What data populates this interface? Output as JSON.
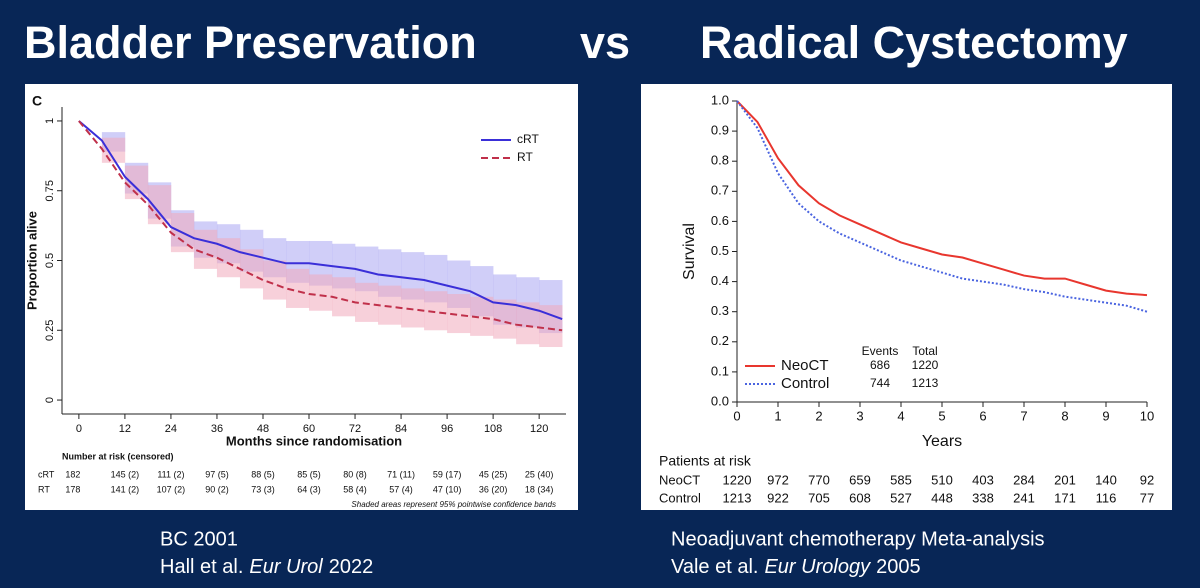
{
  "slide": {
    "title_left": "Bladder Preservation",
    "title_vs": "vs",
    "title_right": "Radical Cystectomy",
    "captions": [
      {
        "line1": "BC 2001",
        "authors": "Hall et al.",
        "journal": "Eur Urol",
        "year": "2022"
      },
      {
        "line1": "Neoadjuvant chemotherapy Meta-analysis",
        "authors": "Vale et al.",
        "journal": "Eur Urology",
        "year": "2005"
      }
    ]
  },
  "chart_data": [
    {
      "type": "line",
      "panel_label": "C",
      "y_label": "Proportion alive",
      "x_label": "Months since randomisation",
      "x": [
        0,
        6,
        12,
        18,
        24,
        30,
        36,
        42,
        48,
        54,
        60,
        66,
        72,
        78,
        84,
        90,
        96,
        102,
        108,
        114,
        120,
        126
      ],
      "xlim": [
        -4.4,
        127
      ],
      "ylim": [
        -0.05,
        1.05
      ],
      "xticks": [
        0,
        12,
        24,
        36,
        48,
        60,
        72,
        84,
        96,
        108,
        120
      ],
      "yticks": [
        0,
        0.25,
        0.5,
        0.75,
        1
      ],
      "legend": "upper right",
      "series": [
        {
          "name": "cRT",
          "color": "#3a2fd8",
          "line_style": "solid",
          "band_color": "#aaa6f2",
          "values": [
            1.0,
            0.93,
            0.8,
            0.72,
            0.62,
            0.58,
            0.56,
            0.53,
            0.51,
            0.49,
            0.49,
            0.48,
            0.47,
            0.45,
            0.44,
            0.43,
            0.41,
            0.39,
            0.35,
            0.34,
            0.32,
            0.29
          ],
          "lower": [
            1.0,
            0.89,
            0.74,
            0.65,
            0.55,
            0.51,
            0.49,
            0.46,
            0.44,
            0.42,
            0.41,
            0.4,
            0.39,
            0.37,
            0.36,
            0.35,
            0.33,
            0.3,
            0.27,
            0.26,
            0.24,
            0.2
          ],
          "upper": [
            1.0,
            0.96,
            0.85,
            0.78,
            0.68,
            0.64,
            0.63,
            0.61,
            0.58,
            0.57,
            0.57,
            0.56,
            0.55,
            0.54,
            0.53,
            0.52,
            0.5,
            0.48,
            0.45,
            0.44,
            0.43,
            0.4
          ]
        },
        {
          "name": "RT",
          "color": "#c0304a",
          "line_style": "dashed",
          "band_color": "#f0aabb",
          "values": [
            1.0,
            0.9,
            0.78,
            0.7,
            0.6,
            0.54,
            0.51,
            0.47,
            0.43,
            0.4,
            0.38,
            0.37,
            0.35,
            0.34,
            0.33,
            0.32,
            0.31,
            0.3,
            0.29,
            0.27,
            0.26,
            0.25
          ],
          "lower": [
            1.0,
            0.85,
            0.72,
            0.63,
            0.53,
            0.47,
            0.44,
            0.4,
            0.36,
            0.33,
            0.32,
            0.3,
            0.28,
            0.27,
            0.26,
            0.25,
            0.24,
            0.23,
            0.22,
            0.2,
            0.19,
            0.17
          ],
          "upper": [
            1.0,
            0.94,
            0.84,
            0.77,
            0.67,
            0.61,
            0.58,
            0.54,
            0.5,
            0.47,
            0.45,
            0.44,
            0.42,
            0.41,
            0.4,
            0.39,
            0.38,
            0.37,
            0.36,
            0.35,
            0.34,
            0.33
          ]
        }
      ],
      "risk_table": {
        "title": "Number at risk (censored)",
        "rows": [
          {
            "name": "cRT",
            "values": [
              "182",
              "145 (2)",
              "111 (2)",
              "97 (5)",
              "88 (5)",
              "85 (5)",
              "80 (8)",
              "71 (11)",
              "59 (17)",
              "45 (25)",
              "25 (40)"
            ]
          },
          {
            "name": "RT",
            "values": [
              "178",
              "141 (2)",
              "107 (2)",
              "90 (2)",
              "73 (3)",
              "64 (3)",
              "58 (4)",
              "57 (4)",
              "47 (10)",
              "36 (20)",
              "18 (34)"
            ]
          }
        ]
      },
      "note": "Shaded areas represent 95% pointwise confidence bands"
    },
    {
      "type": "line",
      "y_label": "Survival",
      "x_label": "Years",
      "x": [
        0,
        0.5,
        1,
        1.5,
        2,
        2.5,
        3,
        3.5,
        4,
        4.5,
        5,
        5.5,
        6,
        6.5,
        7,
        7.5,
        8,
        8.5,
        9,
        9.5,
        10
      ],
      "xlim": [
        0,
        10
      ],
      "ylim": [
        0,
        1
      ],
      "xticks": [
        0,
        1,
        2,
        3,
        4,
        5,
        6,
        7,
        8,
        9,
        10
      ],
      "yticks": [
        {
          "value": 0,
          "label": "0.0"
        },
        0.1,
        0.2,
        0.3,
        0.4,
        0.5,
        0.6,
        0.7,
        0.8,
        0.9,
        {
          "value": 1,
          "label": "1.0"
        }
      ],
      "legend": "lower left",
      "series": [
        {
          "name": "NeoCT",
          "color": "#e8362e",
          "line_style": "solid",
          "values": [
            1.0,
            0.93,
            0.81,
            0.72,
            0.66,
            0.62,
            0.59,
            0.56,
            0.53,
            0.51,
            0.49,
            0.48,
            0.46,
            0.44,
            0.42,
            0.41,
            0.41,
            0.39,
            0.37,
            0.36,
            0.355
          ]
        },
        {
          "name": "Control",
          "color": "#4a64e0",
          "line_style": "dotted",
          "values": [
            1.0,
            0.91,
            0.76,
            0.66,
            0.6,
            0.56,
            0.53,
            0.5,
            0.47,
            0.45,
            0.43,
            0.41,
            0.4,
            0.39,
            0.375,
            0.365,
            0.35,
            0.34,
            0.33,
            0.32,
            0.3
          ]
        }
      ],
      "legend_table": {
        "headers": [
          "Events",
          "Total"
        ],
        "rows": [
          [
            686,
            1220
          ],
          [
            744,
            1213
          ]
        ]
      },
      "risk_table": {
        "title": "Patients at risk",
        "rows": [
          {
            "name": "NeoCT",
            "values": [
              1220,
              972,
              770,
              659,
              585,
              510,
              403,
              284,
              201,
              140,
              92
            ]
          },
          {
            "name": "Control",
            "values": [
              1213,
              922,
              705,
              608,
              527,
              448,
              338,
              241,
              171,
              116,
              77
            ]
          }
        ]
      }
    }
  ]
}
